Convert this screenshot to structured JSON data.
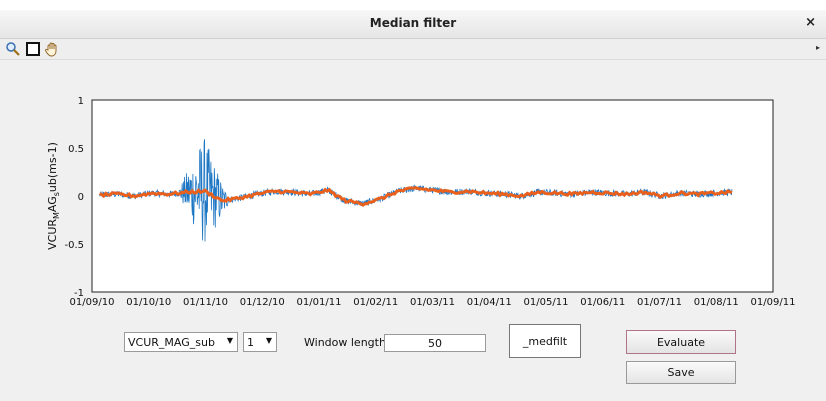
{
  "window": {
    "title": "Median filter",
    "close": "×"
  },
  "toolbar": {
    "icons": [
      "zoom-icon",
      "rectangle-select-icon",
      "pan-hand-icon"
    ],
    "overflow": "▸"
  },
  "colors": {
    "raw": "#1f77c4",
    "filtered": "#e8601c"
  },
  "chart_data": {
    "type": "line",
    "ylabel": "VCUR_MAG_sub(ms-1)",
    "ylim": [
      -1,
      1
    ],
    "yticks": [
      -1,
      -0.5,
      0,
      0.5,
      1
    ],
    "ytick_labels": [
      "-1",
      "-0.5",
      "0",
      "0.5",
      "1"
    ],
    "xticks": [
      "01/09/10",
      "01/10/10",
      "01/11/10",
      "01/12/10",
      "01/01/11",
      "01/02/11",
      "01/03/11",
      "01/04/11",
      "01/05/11",
      "01/06/11",
      "01/07/11",
      "01/08/11",
      "01/09/11"
    ],
    "xlim": [
      "2010-09-01",
      "2011-09-01"
    ],
    "data_range": [
      "2010-09-05",
      "2011-08-10"
    ],
    "series": [
      {
        "values": [
          0.01,
          0.02,
          0.0,
          0.03,
          0.02,
          0.04,
          0.05,
          -0.05,
          -0.02,
          0.02,
          0.05,
          0.04,
          0.02,
          0.06,
          -0.05,
          -0.08,
          -0.03,
          0.05,
          0.08,
          0.06,
          0.04,
          0.05,
          0.03,
          0.02,
          0.0,
          0.04,
          0.03,
          0.02,
          0.04,
          0.03,
          0.02,
          0.04,
          0.0,
          0.03,
          0.02,
          0.03,
          0.04
        ]
      },
      {
        "values": [
          0.01,
          0.02,
          0.0,
          0.03,
          0.02,
          0.04,
          0.05,
          -0.05,
          -0.02,
          0.02,
          0.05,
          0.04,
          0.02,
          0.06,
          -0.05,
          -0.08,
          -0.03,
          0.05,
          0.08,
          0.06,
          0.04,
          0.05,
          0.03,
          0.02,
          0.0,
          0.04,
          0.03,
          0.02,
          0.04,
          0.03,
          0.02,
          0.04,
          0.0,
          0.03,
          0.02,
          0.03,
          0.04
        ]
      }
    ]
  },
  "controls": {
    "variable_select": "VCUR_MAG_sub",
    "index_select": "1",
    "window_length_label": "Window length",
    "window_length_value": "50",
    "suffix_value": "_medfilt",
    "evaluate_label": "Evaluate",
    "save_label": "Save"
  }
}
